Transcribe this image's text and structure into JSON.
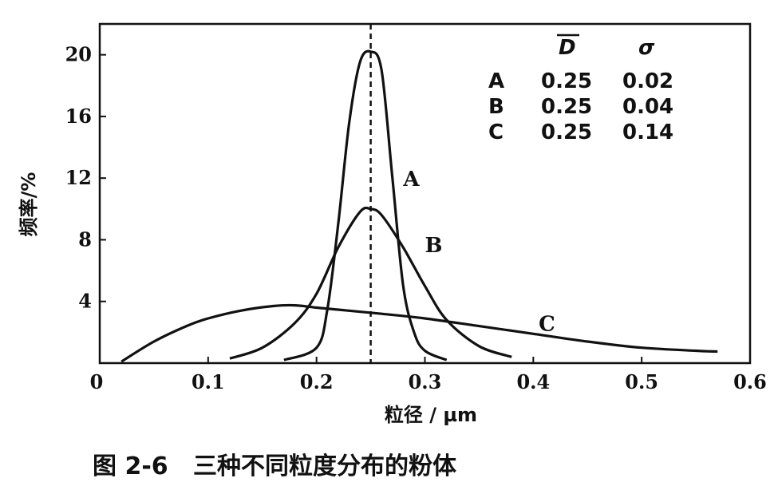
{
  "chart_data": {
    "type": "line",
    "xlabel": "粒径 / µm",
    "ylabel": "频率/%",
    "caption": "图 2-6   三种不同粒度分布的粉体",
    "xlim": [
      0,
      0.6
    ],
    "ylim": [
      0,
      22
    ],
    "x_ticks": [
      "0",
      "0.1",
      "0.2",
      "0.3",
      "0.4",
      "0.5",
      "0.6"
    ],
    "x_tick_values": [
      0,
      0.1,
      0.2,
      0.3,
      0.4,
      0.5,
      0.6
    ],
    "y_ticks": [
      "4",
      "8",
      "12",
      "16",
      "20"
    ],
    "y_tick_values": [
      4,
      8,
      12,
      16,
      20
    ],
    "mean_line_x": 0.25,
    "legend": {
      "header_mean": "D",
      "header_sigma": "σ",
      "rows": [
        {
          "label": "A",
          "mean": "0.25",
          "sigma": "0.02"
        },
        {
          "label": "B",
          "mean": "0.25",
          "sigma": "0.04"
        },
        {
          "label": "C",
          "mean": "0.25",
          "sigma": "0.14"
        }
      ]
    },
    "series": [
      {
        "name": "A",
        "x": [
          0.17,
          0.2,
          0.21,
          0.22,
          0.23,
          0.24,
          0.25,
          0.26,
          0.27,
          0.28,
          0.29,
          0.3,
          0.32
        ],
        "y": [
          0.2,
          1.0,
          3.5,
          9.0,
          15.5,
          19.5,
          20.2,
          19.0,
          12.0,
          5.0,
          2.0,
          0.8,
          0.2
        ]
      },
      {
        "name": "B",
        "x": [
          0.12,
          0.15,
          0.18,
          0.2,
          0.22,
          0.24,
          0.25,
          0.26,
          0.28,
          0.3,
          0.32,
          0.35,
          0.38
        ],
        "y": [
          0.3,
          1.0,
          2.6,
          4.5,
          7.5,
          9.8,
          10.0,
          9.6,
          7.5,
          5.0,
          2.8,
          1.1,
          0.4
        ]
      },
      {
        "name": "C",
        "x": [
          0.02,
          0.05,
          0.08,
          0.1,
          0.13,
          0.16,
          0.18,
          0.2,
          0.23,
          0.26,
          0.3,
          0.35,
          0.4,
          0.45,
          0.5,
          0.55,
          0.57
        ],
        "y": [
          0.1,
          1.4,
          2.4,
          2.9,
          3.4,
          3.7,
          3.75,
          3.6,
          3.4,
          3.2,
          2.9,
          2.4,
          1.9,
          1.4,
          1.0,
          0.8,
          0.75
        ]
      }
    ],
    "curve_labels": [
      {
        "text": "A",
        "x": 0.28,
        "y": 11.5
      },
      {
        "text": "B",
        "x": 0.3,
        "y": 7.2
      },
      {
        "text": "C",
        "x": 0.405,
        "y": 2.1
      }
    ]
  }
}
